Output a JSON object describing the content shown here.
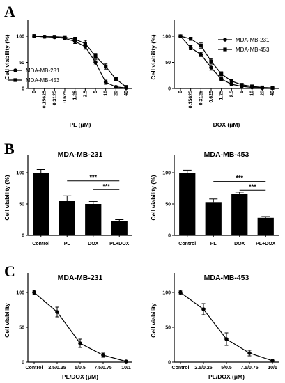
{
  "panel_labels": [
    "A",
    "B",
    "C"
  ],
  "chart_data": [
    {
      "id": "A1",
      "type": "line",
      "title": "",
      "xlabel": "PL (μM)",
      "ylabel": "Cell viability (%)",
      "categories": [
        "0",
        "0.15625",
        "0.3125",
        "0.625",
        "1.25",
        "2.5",
        "5",
        "10",
        "20",
        "40"
      ],
      "ylim": [
        0,
        120
      ],
      "yticks": [
        0,
        50,
        100
      ],
      "legend_position": "middle-left",
      "series": [
        {
          "name": "MDA-MB-231",
          "marker": "circle",
          "values": [
            100,
            99,
            98,
            96,
            90,
            80,
            50,
            12,
            3,
            1
          ],
          "errors": [
            3,
            2,
            2,
            3,
            4,
            5,
            5,
            4,
            2,
            1
          ]
        },
        {
          "name": "MDA-MB-453",
          "marker": "square",
          "values": [
            100,
            99,
            99,
            98,
            94,
            86,
            62,
            42,
            18,
            3
          ],
          "errors": [
            3,
            2,
            2,
            3,
            4,
            6,
            5,
            5,
            3,
            1
          ]
        }
      ]
    },
    {
      "id": "A2",
      "type": "line",
      "title": "",
      "xlabel": "DOX (μM)",
      "ylabel": "Cell viability (%)",
      "categories": [
        "0",
        "0.15625",
        "0.3125",
        "0.625",
        "1.25",
        "2.5",
        "5",
        "10",
        "20",
        "40"
      ],
      "ylim": [
        0,
        120
      ],
      "yticks": [
        0,
        50,
        100
      ],
      "legend_position": "top-right",
      "series": [
        {
          "name": "MDA-MB-231",
          "marker": "circle",
          "values": [
            100,
            78,
            65,
            40,
            18,
            8,
            4,
            2,
            1,
            1
          ],
          "errors": [
            2,
            4,
            4,
            5,
            3,
            2,
            1,
            1,
            1,
            1
          ]
        },
        {
          "name": "MDA-MB-453",
          "marker": "square",
          "values": [
            100,
            95,
            82,
            52,
            28,
            14,
            7,
            4,
            2,
            1
          ],
          "errors": [
            2,
            3,
            5,
            5,
            4,
            3,
            2,
            1,
            1,
            1
          ]
        }
      ]
    },
    {
      "id": "B1",
      "type": "bar",
      "title": "MDA-MB-231",
      "xlabel": "",
      "ylabel": "Cell viability (%)",
      "categories": [
        "Control",
        "PL",
        "DOX",
        "PL+DOX"
      ],
      "values": [
        100,
        55,
        50,
        23
      ],
      "errors": [
        5,
        8,
        4,
        2
      ],
      "ylim": [
        0,
        120
      ],
      "yticks": [
        0,
        50,
        100
      ],
      "significance": [
        {
          "label": "***",
          "from": 1,
          "to": 3
        },
        {
          "label": "***",
          "from": 2,
          "to": 3
        }
      ]
    },
    {
      "id": "B2",
      "type": "bar",
      "title": "MDA-MB-453",
      "xlabel": "",
      "ylabel": "Cell viability (%)",
      "categories": [
        "Control",
        "PL",
        "DOX",
        "PL+DOX"
      ],
      "values": [
        100,
        53,
        66,
        28
      ],
      "errors": [
        4,
        5,
        3,
        2
      ],
      "ylim": [
        0,
        120
      ],
      "yticks": [
        0,
        50,
        100
      ],
      "significance": [
        {
          "label": "***",
          "from": 1,
          "to": 3
        },
        {
          "label": "***",
          "from": 2,
          "to": 3
        }
      ]
    },
    {
      "id": "C1",
      "type": "line",
      "title": "MDA-MB-231",
      "xlabel": "PL/DOX (μM)",
      "ylabel": "Cell viability",
      "categories": [
        "Control",
        "2.5/0.25",
        "5/0.5",
        "7.5/0.75",
        "10/1"
      ],
      "ylim": [
        0,
        120
      ],
      "yticks": [
        0,
        50,
        100
      ],
      "series": [
        {
          "marker": "circle",
          "values": [
            100,
            72,
            27,
            10,
            1
          ],
          "errors": [
            3,
            7,
            6,
            3,
            1
          ]
        }
      ]
    },
    {
      "id": "C2",
      "type": "line",
      "title": "MDA-MB-453",
      "xlabel": "PL/DOX (μM)",
      "ylabel": "Cell viability",
      "categories": [
        "Control",
        "2.5/0.25",
        "5/0.5",
        "7.5/0.75",
        "10/1"
      ],
      "ylim": [
        0,
        120
      ],
      "yticks": [
        0,
        50,
        100
      ],
      "series": [
        {
          "marker": "circle",
          "values": [
            100,
            76,
            33,
            13,
            2
          ],
          "errors": [
            3,
            8,
            9,
            4,
            1
          ]
        }
      ]
    }
  ]
}
